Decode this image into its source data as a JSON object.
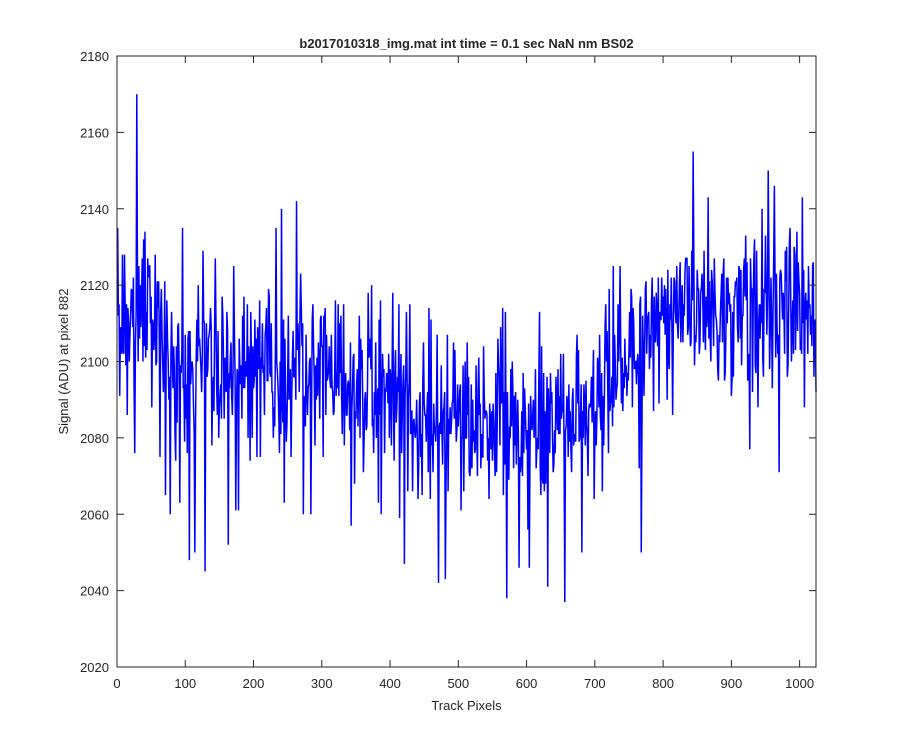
{
  "chart_data": {
    "type": "line",
    "title": "b2017010318_img.mat int time = 0.1 sec  NaN nm BS02",
    "xlabel": "Track Pixels",
    "ylabel": "Signal (ADU) at pixel 882",
    "xlim": [
      0,
      1024
    ],
    "ylim": [
      2020,
      2180
    ],
    "xticks": [
      0,
      100,
      200,
      300,
      400,
      500,
      600,
      700,
      800,
      900,
      1000
    ],
    "yticks": [
      2020,
      2040,
      2060,
      2080,
      2100,
      2120,
      2140,
      2160,
      2180
    ],
    "grid": false,
    "legend": "none",
    "series": [
      {
        "color": "#0000ff",
        "generator": {
          "n": 1024,
          "seed": 20170103,
          "noise_amplitude": 11,
          "baseline_knots": [
            [
              0,
              2108
            ],
            [
              50,
              2106
            ],
            [
              100,
              2097
            ],
            [
              150,
              2097
            ],
            [
              200,
              2096
            ],
            [
              300,
              2097
            ],
            [
              400,
              2090
            ],
            [
              500,
              2087
            ],
            [
              550,
              2085
            ],
            [
              600,
              2083
            ],
            [
              650,
              2083
            ],
            [
              700,
              2090
            ],
            [
              760,
              2104
            ],
            [
              800,
              2112
            ],
            [
              900,
              2114
            ],
            [
              1000,
              2115
            ],
            [
              1024,
              2116
            ]
          ],
          "spikes": [
            [
              0,
              2135
            ],
            [
              3,
              2091
            ],
            [
              14,
              2086
            ],
            [
              25,
              2076
            ],
            [
              28,
              2170
            ],
            [
              40,
              2134
            ],
            [
              50,
              2088
            ],
            [
              55,
              2128
            ],
            [
              62,
              2075
            ],
            [
              70,
              2065
            ],
            [
              75,
              2090
            ],
            [
              77,
              2060
            ],
            [
              91,
              2063
            ],
            [
              95,
              2135
            ],
            [
              102,
              2076
            ],
            [
              105,
              2048
            ],
            [
              113,
              2050
            ],
            [
              125,
              2129
            ],
            [
              128,
              2045
            ],
            [
              143,
              2127
            ],
            [
              162,
              2052
            ],
            [
              170,
              2125
            ],
            [
              173,
              2061
            ],
            [
              177,
              2061
            ],
            [
              232,
              2135
            ],
            [
              240,
              2140
            ],
            [
              244,
              2063
            ],
            [
              262,
              2142
            ],
            [
              272,
              2060
            ],
            [
              283,
              2060
            ],
            [
              342,
              2057
            ],
            [
              386,
              2060
            ],
            [
              420,
              2047
            ],
            [
              470,
              2042
            ],
            [
              480,
              2043
            ],
            [
              570,
              2038
            ],
            [
              588,
              2046
            ],
            [
              603,
              2046
            ],
            [
              630,
              2041
            ],
            [
              655,
              2037
            ],
            [
              680,
              2050
            ],
            [
              767,
              2050
            ],
            [
              843,
              2155
            ],
            [
              926,
              2077
            ],
            [
              953,
              2150
            ],
            [
              969,
              2071
            ],
            [
              1003,
              2143
            ]
          ]
        }
      }
    ]
  }
}
